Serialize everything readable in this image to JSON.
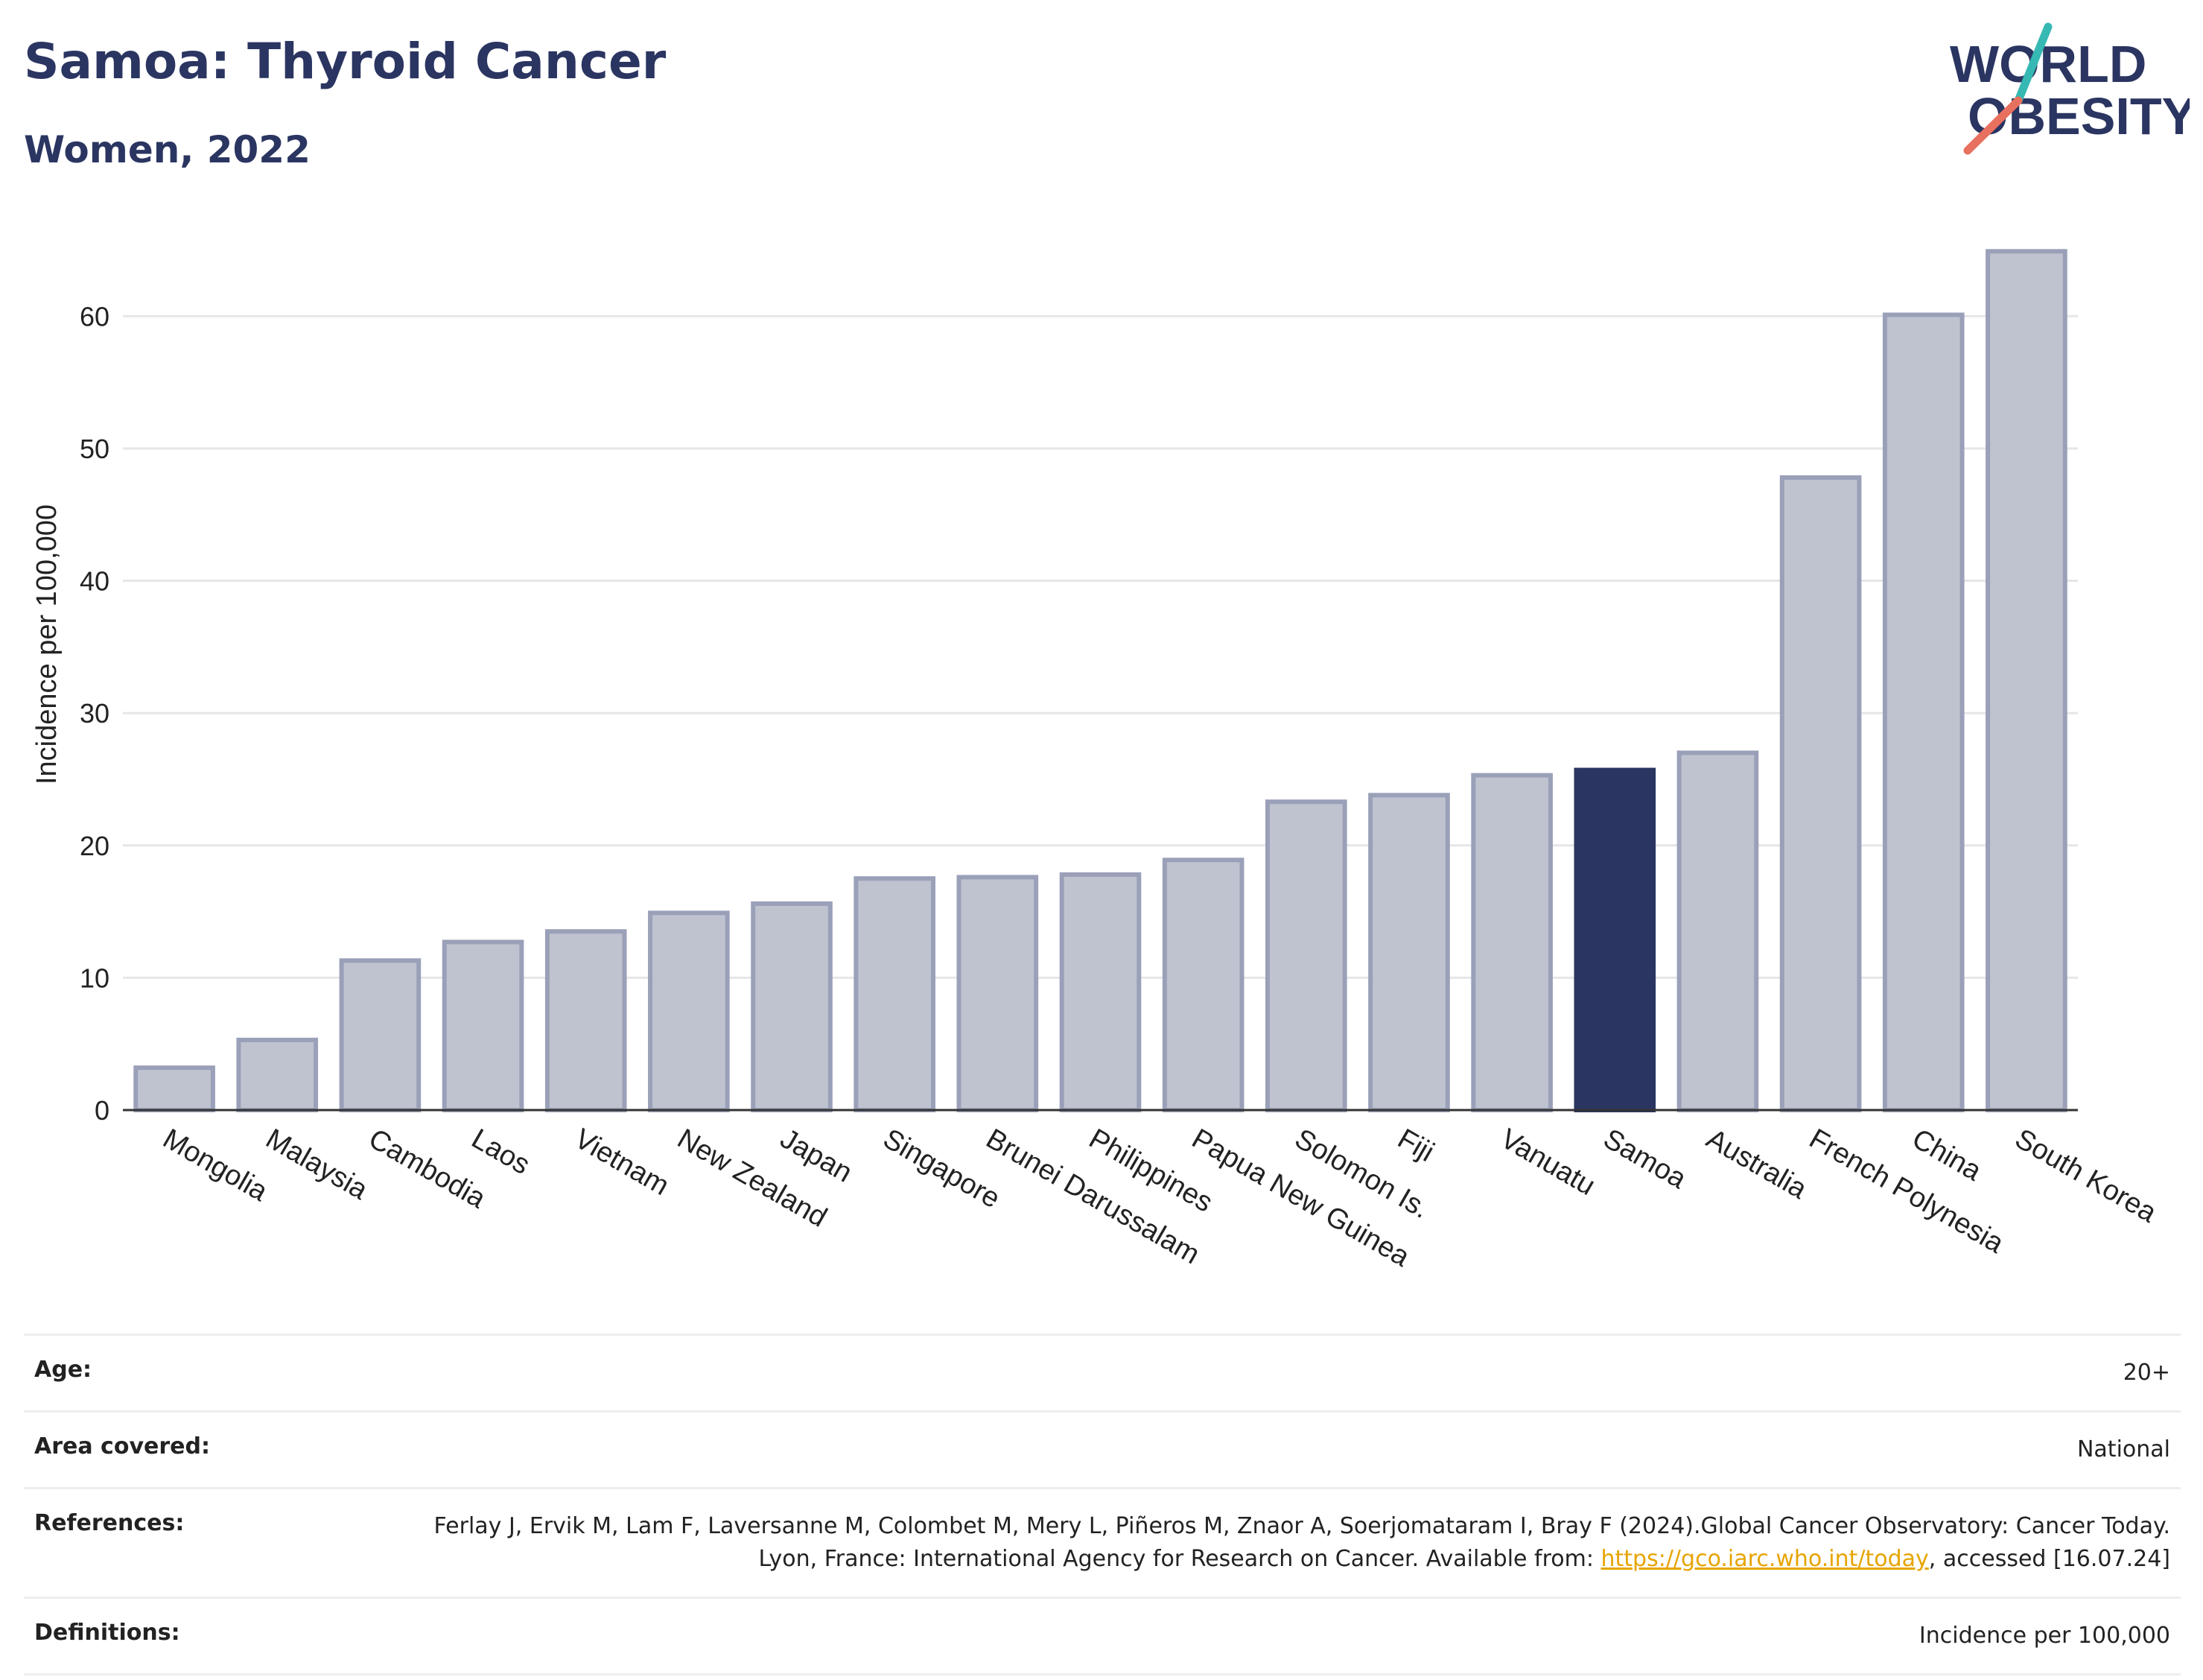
{
  "header": {
    "title": "Samoa: Thyroid Cancer",
    "subtitle": "Women, 2022"
  },
  "logo": {
    "line1": "WORLD",
    "line2": "OBESITY",
    "teal": "#36b8b3",
    "coral": "#e8705f",
    "navy": "#2b3561"
  },
  "chart_data": {
    "type": "bar",
    "ylabel": "Incidence per 100,000",
    "ylim": [
      0,
      67
    ],
    "yticks": [
      0,
      10,
      20,
      30,
      40,
      50,
      60
    ],
    "grid": true,
    "highlight": "Samoa",
    "colors": {
      "bar": "#bfc3d0",
      "bar_border": "#9aa0b8",
      "highlight": "#2b3561"
    },
    "categories": [
      "Mongolia",
      "Malaysia",
      "Cambodia",
      "Laos",
      "Vietnam",
      "New Zealand",
      "Japan",
      "Singapore",
      "Brunei Darussalam",
      "Philippines",
      "Papua New Guinea",
      "Solomon Is.",
      "Fiji",
      "Vanuatu",
      "Samoa",
      "Australia",
      "French Polynesia",
      "China",
      "South Korea"
    ],
    "values": [
      3.2,
      5.3,
      11.3,
      12.7,
      13.5,
      14.9,
      15.6,
      17.5,
      17.6,
      17.8,
      18.9,
      23.3,
      23.8,
      25.3,
      25.7,
      27.0,
      47.8,
      60.1,
      64.9
    ]
  },
  "meta": {
    "age_label": "Age:",
    "age_value": "20+",
    "area_label": "Area covered:",
    "area_value": "National",
    "references_label": "References:",
    "references_text1": "Ferlay J, Ervik M, Lam F, Laversanne M, Colombet M, Mery L, Piñeros M, Znaor A, Soerjomataram I, Bray F (2024).Global Cancer Observatory: Cancer Today. Lyon, France: International Agency for Research on Cancer. Available from: ",
    "references_link": "https://gco.iarc.who.int/today",
    "references_text2": ", accessed [16.07.24]",
    "definitions_label": "Definitions:",
    "definitions_value": "Incidence per 100,000"
  }
}
